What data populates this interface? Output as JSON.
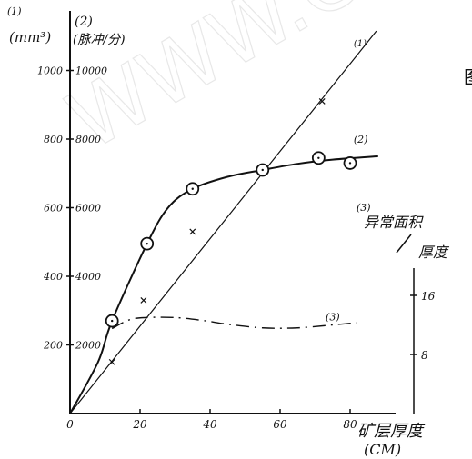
{
  "chart_data": {
    "type": "line",
    "xlabel": "矿层厚度",
    "xlabel_unit": "(CM)",
    "x_ticks": [
      "0",
      "20",
      "40",
      "60",
      "80"
    ],
    "xlim": [
      0,
      90
    ],
    "axis1": {
      "series_id": "(1)",
      "unit": "(mm³)",
      "ticks": [
        "200",
        "400",
        "600",
        "800",
        "1000"
      ],
      "ylim": [
        0,
        1100
      ]
    },
    "axis2": {
      "series_id": "(2)",
      "unit": "(脉冲/分)",
      "ticks": [
        "2000",
        "4000",
        "6000",
        "8000",
        "10000"
      ],
      "ylim": [
        0,
        11000
      ]
    },
    "axis3": {
      "series_id": "(3)",
      "label_top": "异常面积",
      "label_bottom": "厚度",
      "ticks": [
        "8",
        "16"
      ],
      "ylim": [
        0,
        19
      ]
    },
    "series": [
      {
        "name": "(1)",
        "style": "straight line through x points",
        "color": "#111111",
        "axis": "axis1",
        "line_points": [
          {
            "x": 0,
            "y": 0
          },
          {
            "x": 87.5,
            "y": 1115
          }
        ],
        "x": [
          12,
          21,
          35,
          72
        ],
        "y": [
          150,
          330,
          530,
          910
        ]
      },
      {
        "name": "(2)",
        "style": "smooth curve with circle markers",
        "color": "#111111",
        "axis": "axis2",
        "x": [
          0,
          12,
          22,
          35,
          55,
          71,
          80
        ],
        "y": [
          0,
          2700,
          4950,
          6550,
          7100,
          7450,
          7300
        ],
        "curve_points": [
          {
            "x": 0,
            "y": 0
          },
          {
            "x": 8,
            "y": 1500
          },
          {
            "x": 12,
            "y": 2700
          },
          {
            "x": 22,
            "y": 4950
          },
          {
            "x": 28,
            "y": 6000
          },
          {
            "x": 35,
            "y": 6550
          },
          {
            "x": 45,
            "y": 6900
          },
          {
            "x": 55,
            "y": 7100
          },
          {
            "x": 65,
            "y": 7280
          },
          {
            "x": 75,
            "y": 7400
          },
          {
            "x": 88,
            "y": 7500
          }
        ]
      },
      {
        "name": "(3)",
        "style": "dash-dot curve",
        "color": "#111111",
        "axis": "axis3",
        "x": [
          12,
          17,
          22,
          30,
          38,
          45,
          55,
          65,
          75,
          82
        ],
        "y": [
          11.5,
          12.7,
          13.0,
          13.0,
          12.6,
          12.1,
          11.6,
          11.6,
          12.0,
          12.3
        ]
      }
    ]
  },
  "marks": {
    "fig_char": "图",
    "watermark": "WWW.C"
  }
}
